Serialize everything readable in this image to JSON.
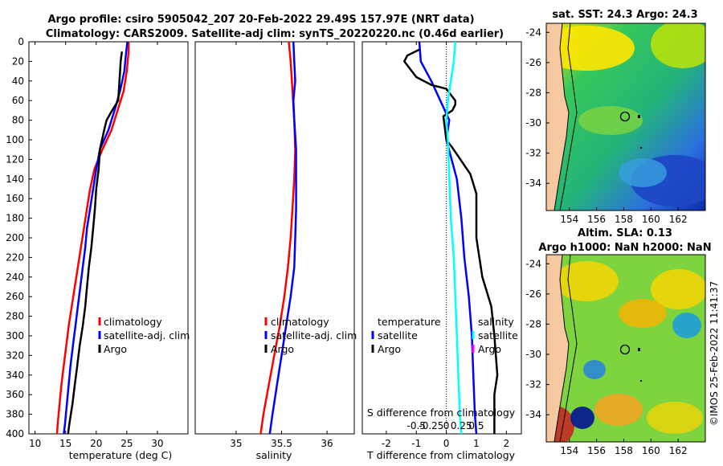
{
  "title": {
    "line1": "Argo profile: csiro 5905042_207 20-Feb-2022 29.49S 157.97E (NRT data)",
    "line2": "Climatology: CARS2009. Satellite-adj clim: synTS_20220220.nc (0.46d earlier)"
  },
  "side": {
    "sst_title": "sat. SST: 24.3 Argo: 24.3",
    "sla_title_1": "Altim. SLA: 0.13",
    "sla_title_2": "Argo h1000: NaN h2000: NaN",
    "timestamp": "©IMOS 25-Feb-2022 11:41:37"
  },
  "colors": {
    "climatology": "#ff0000",
    "satellite": "#0000ff",
    "argo": "#000000",
    "sal_satellite": "#00ffff",
    "sal_argo": "#ff00ff",
    "land": "#f6c9a0"
  },
  "chart_data": [
    {
      "type": "line",
      "id": "temperature",
      "xlabel": "temperature (deg C)",
      "xlim": [
        9,
        35
      ],
      "ylim": [
        0,
        400
      ],
      "xticks": [
        10,
        15,
        20,
        25,
        30
      ],
      "yticks": [
        0,
        20,
        40,
        60,
        80,
        100,
        120,
        140,
        160,
        180,
        200,
        220,
        240,
        260,
        280,
        300,
        320,
        340,
        360,
        380,
        400
      ],
      "legend": [
        "climatology",
        "satellite-adj. clim",
        "Argo"
      ],
      "series": [
        {
          "name": "climatology",
          "color": "#ff0000",
          "points": [
            [
              25.3,
              0
            ],
            [
              25.3,
              10
            ],
            [
              25.0,
              30
            ],
            [
              24.5,
              50
            ],
            [
              23.5,
              70
            ],
            [
              22.5,
              90
            ],
            [
              21.0,
              110
            ],
            [
              19.7,
              130
            ],
            [
              19.0,
              150
            ],
            [
              18.5,
              170
            ],
            [
              18.0,
              190
            ],
            [
              17.5,
              210
            ],
            [
              17.0,
              230
            ],
            [
              16.5,
              250
            ],
            [
              16.0,
              270
            ],
            [
              15.5,
              290
            ],
            [
              15.1,
              310
            ],
            [
              14.7,
              330
            ],
            [
              14.3,
              350
            ],
            [
              14.0,
              370
            ],
            [
              13.7,
              390
            ],
            [
              13.6,
              400
            ]
          ]
        },
        {
          "name": "satellite-adj. clim",
          "color": "#0000ff",
          "points": [
            [
              25.1,
              0
            ],
            [
              24.9,
              10
            ],
            [
              24.6,
              30
            ],
            [
              23.9,
              50
            ],
            [
              23.0,
              70
            ],
            [
              22.0,
              90
            ],
            [
              20.6,
              110
            ],
            [
              20.0,
              130
            ],
            [
              19.5,
              150
            ],
            [
              19.0,
              170
            ],
            [
              18.5,
              190
            ],
            [
              18.2,
              210
            ],
            [
              17.8,
              230
            ],
            [
              17.4,
              250
            ],
            [
              17.0,
              270
            ],
            [
              16.6,
              290
            ],
            [
              16.2,
              310
            ],
            [
              15.8,
              330
            ],
            [
              15.5,
              350
            ],
            [
              15.2,
              370
            ],
            [
              14.9,
              390
            ],
            [
              14.7,
              400
            ]
          ]
        },
        {
          "name": "Argo",
          "color": "#000000",
          "points": [
            [
              24.2,
              10
            ],
            [
              24.0,
              20
            ],
            [
              23.9,
              30
            ],
            [
              23.8,
              40
            ],
            [
              23.7,
              50
            ],
            [
              23.6,
              60
            ],
            [
              22.6,
              70
            ],
            [
              21.7,
              80
            ],
            [
              21.3,
              90
            ],
            [
              20.6,
              110
            ],
            [
              20.4,
              130
            ],
            [
              20.0,
              150
            ],
            [
              19.8,
              170
            ],
            [
              19.5,
              190
            ],
            [
              19.2,
              210
            ],
            [
              18.8,
              230
            ],
            [
              18.5,
              250
            ],
            [
              18.2,
              270
            ],
            [
              17.8,
              290
            ],
            [
              17.3,
              310
            ],
            [
              16.9,
              330
            ],
            [
              16.5,
              350
            ],
            [
              16.1,
              370
            ],
            [
              15.6,
              390
            ],
            [
              15.4,
              400
            ]
          ]
        }
      ]
    },
    {
      "type": "line",
      "id": "salinity",
      "xlabel": "salinity",
      "xlim": [
        34.55,
        36.3
      ],
      "ylim": [
        0,
        400
      ],
      "xticks": [
        35,
        35.5,
        36
      ],
      "legend": [
        "climatology",
        "satellite-adj. clim",
        "Argo"
      ],
      "series": [
        {
          "name": "climatology",
          "color": "#ff0000",
          "points": [
            [
              35.58,
              0
            ],
            [
              35.6,
              20
            ],
            [
              35.62,
              50
            ],
            [
              35.64,
              80
            ],
            [
              35.65,
              110
            ],
            [
              35.64,
              140
            ],
            [
              35.62,
              170
            ],
            [
              35.6,
              200
            ],
            [
              35.57,
              230
            ],
            [
              35.53,
              260
            ],
            [
              35.48,
              290
            ],
            [
              35.42,
              320
            ],
            [
              35.36,
              350
            ],
            [
              35.3,
              380
            ],
            [
              35.27,
              400
            ]
          ]
        },
        {
          "name": "satellite-adj. clim",
          "color": "#0000ff",
          "points": [
            [
              35.63,
              0
            ],
            [
              35.64,
              20
            ],
            [
              35.65,
              40
            ],
            [
              35.63,
              60
            ],
            [
              35.64,
              80
            ],
            [
              35.66,
              110
            ],
            [
              35.66,
              140
            ],
            [
              35.66,
              170
            ],
            [
              35.65,
              200
            ],
            [
              35.64,
              230
            ],
            [
              35.6,
              260
            ],
            [
              35.55,
              290
            ],
            [
              35.5,
              320
            ],
            [
              35.45,
              350
            ],
            [
              35.4,
              380
            ],
            [
              35.37,
              400
            ]
          ]
        },
        {
          "name": "Argo",
          "color": "#000000",
          "points": []
        }
      ]
    },
    {
      "type": "line",
      "id": "difference",
      "xlabel": "T difference from climatology",
      "xlabel_top": "S difference from climatology",
      "xlim": [
        -2.8,
        2.5
      ],
      "ylim": [
        0,
        400
      ],
      "xticks": [
        -2,
        -1,
        0,
        1,
        2
      ],
      "top_ticks": [
        "-0.5",
        "-0.25",
        "0",
        "0.25",
        "0.5"
      ],
      "top_tick_pos": [
        -1,
        -0.5,
        0,
        0.5,
        1
      ],
      "legend_left_title": "temperature",
      "legend_right_title": "salinity",
      "legend_left": [
        "satellite",
        "Argo"
      ],
      "legend_right": [
        "satellite",
        "Argo"
      ],
      "series": [
        {
          "name": "temperature satellite",
          "color": "#0000ff",
          "points": [
            [
              -0.9,
              0
            ],
            [
              -0.85,
              20
            ],
            [
              -0.5,
              40
            ],
            [
              -0.2,
              60
            ],
            [
              0.1,
              80
            ],
            [
              0.0,
              100
            ],
            [
              0.35,
              140
            ],
            [
              0.5,
              180
            ],
            [
              0.6,
              220
            ],
            [
              0.75,
              260
            ],
            [
              0.85,
              300
            ],
            [
              0.9,
              340
            ],
            [
              0.95,
              380
            ],
            [
              1.0,
              400
            ]
          ]
        },
        {
          "name": "temperature Argo",
          "color": "#000000",
          "points": [
            [
              -0.9,
              8
            ],
            [
              -1.3,
              14
            ],
            [
              -1.4,
              20
            ],
            [
              -1.2,
              28
            ],
            [
              -1.0,
              36
            ],
            [
              -0.5,
              44
            ],
            [
              0.0,
              48
            ],
            [
              0.3,
              60
            ],
            [
              0.3,
              64
            ],
            [
              0.2,
              70
            ],
            [
              -0.1,
              76
            ],
            [
              0.0,
              100
            ],
            [
              0.2,
              108
            ],
            [
              0.8,
              135
            ],
            [
              1.0,
              155
            ],
            [
              1.0,
              200
            ],
            [
              1.2,
              240
            ],
            [
              1.5,
              270
            ],
            [
              1.6,
              300
            ],
            [
              1.7,
              340
            ],
            [
              1.6,
              360
            ],
            [
              1.6,
              400
            ]
          ]
        },
        {
          "name": "salinity satellite",
          "color": "#00ffff",
          "points": [
            [
              0.3,
              0
            ],
            [
              0.25,
              20
            ],
            [
              0.15,
              40
            ],
            [
              0.05,
              60
            ],
            [
              0.0,
              80
            ],
            [
              0.05,
              100
            ],
            [
              0.1,
              140
            ],
            [
              0.15,
              180
            ],
            [
              0.25,
              220
            ],
            [
              0.3,
              260
            ],
            [
              0.35,
              300
            ],
            [
              0.4,
              340
            ],
            [
              0.45,
              380
            ],
            [
              0.5,
              400
            ]
          ]
        },
        {
          "name": "salinity Argo",
          "color": "#ff00ff",
          "points": []
        }
      ]
    },
    {
      "type": "heatmap",
      "id": "sst-map",
      "title": "sat. SST: 24.3 Argo: 24.3",
      "xlim": [
        152.3,
        164
      ],
      "ylim": [
        -35.8,
        -23.4
      ],
      "xticks": [
        154,
        156,
        158,
        160,
        162
      ],
      "yticks": [
        -24,
        -26,
        -28,
        -30,
        -32,
        -34
      ],
      "argo_position": [
        157.97,
        -29.49
      ]
    },
    {
      "type": "heatmap",
      "id": "sla-map",
      "title": "Altim. SLA: 0.13",
      "xlim": [
        152.3,
        164
      ],
      "ylim": [
        -35.8,
        -23.4
      ],
      "xticks": [
        154,
        156,
        158,
        160,
        162
      ],
      "yticks": [
        -24,
        -26,
        -28,
        -30,
        -32,
        -34
      ],
      "argo_position": [
        157.97,
        -29.49
      ]
    }
  ]
}
